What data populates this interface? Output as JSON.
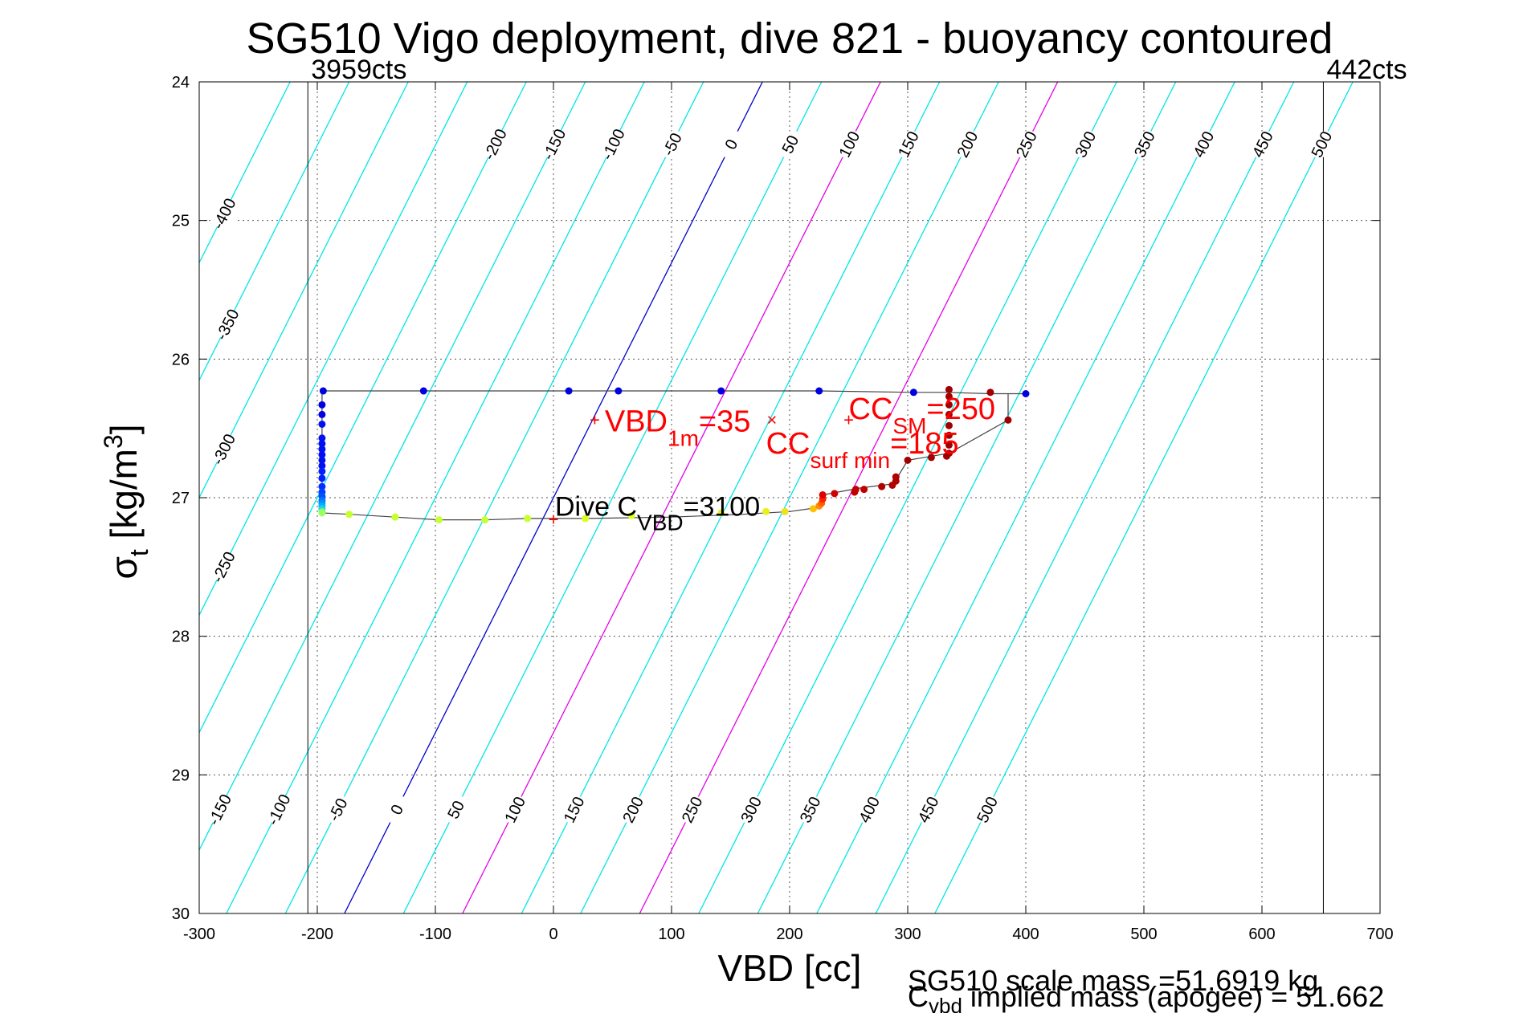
{
  "chart_data": {
    "type": "scatter",
    "title": "SG510 Vigo deployment, dive 821 - buoyancy contoured",
    "xlabel": "VBD [cc]",
    "ylabel": {
      "main": "σ",
      "sub": "t",
      "bracket_open": " [kg/m",
      "sup": "3",
      "bracket_close": "]"
    },
    "xlim": [
      -300,
      700
    ],
    "ylim": [
      24,
      30
    ],
    "y_reversed": true,
    "grid": "dotted",
    "xticks": [
      -300,
      -200,
      -100,
      0,
      100,
      200,
      300,
      400,
      500,
      600,
      700
    ],
    "yticks": [
      24,
      25,
      26,
      27,
      28,
      29,
      30
    ],
    "limits": [
      {
        "x": -208,
        "label": "3959cts"
      },
      {
        "x": 652,
        "label": "442cts"
      }
    ],
    "contours": {
      "slope_vbd_per_sigma": -59,
      "levels": [
        -400,
        -350,
        -300,
        -250,
        -200,
        -150,
        -100,
        -50,
        0,
        50,
        100,
        150,
        200,
        250,
        300,
        350,
        400,
        450,
        500
      ],
      "colors": {
        "default": "#00e5e5",
        "zero": "#0000cc",
        "highlight": "#e600e6"
      },
      "highlight_levels": [
        100,
        250
      ],
      "top_labels": [
        {
          "level": -200,
          "text": "-200"
        },
        {
          "level": -150,
          "text": "-150"
        },
        {
          "level": -100,
          "text": "-100"
        },
        {
          "level": -50,
          "text": "-50"
        },
        {
          "level": 0,
          "text": "0"
        },
        {
          "level": 50,
          "text": "50"
        },
        {
          "level": 100,
          "text": "100"
        },
        {
          "level": 150,
          "text": "150"
        },
        {
          "level": 200,
          "text": "200"
        },
        {
          "level": 250,
          "text": "250"
        },
        {
          "level": 300,
          "text": "300"
        },
        {
          "level": 350,
          "text": "350"
        },
        {
          "level": 400,
          "text": "400"
        },
        {
          "level": 450,
          "text": "450"
        },
        {
          "level": 500,
          "text": "500"
        }
      ],
      "left_labels": [
        {
          "level": -400,
          "text": "-400"
        },
        {
          "level": -350,
          "text": "-350"
        },
        {
          "level": -300,
          "text": "-300"
        },
        {
          "level": -250,
          "text": "-250"
        }
      ],
      "bottom_labels": [
        {
          "level": -150,
          "text": "-150"
        },
        {
          "level": -100,
          "text": "-100"
        },
        {
          "level": -50,
          "text": "-50"
        },
        {
          "level": 0,
          "text": "0"
        },
        {
          "level": 50,
          "text": "50"
        },
        {
          "level": 100,
          "text": "100"
        },
        {
          "level": 150,
          "text": "150"
        },
        {
          "level": 200,
          "text": "200"
        },
        {
          "level": 250,
          "text": "250"
        },
        {
          "level": 300,
          "text": "300"
        },
        {
          "level": 350,
          "text": "350"
        },
        {
          "level": 400,
          "text": "400"
        },
        {
          "level": 450,
          "text": "450"
        },
        {
          "level": 500,
          "text": "500"
        }
      ]
    },
    "dive_trace": {
      "x": [
        -195,
        -110,
        13,
        55,
        142,
        225,
        305,
        333,
        370,
        400,
        385,
        385,
        335,
        300,
        288,
        260,
        228,
        225,
        200,
        160,
        100,
        27,
        0,
        -22,
        -58,
        -97,
        -134,
        -173,
        -196,
        -196,
        -196,
        -196,
        -196,
        -196,
        -196,
        -196,
        -196,
        -196,
        -196,
        -196,
        -196,
        -196,
        -195
      ],
      "y": [
        26.23,
        26.23,
        26.23,
        26.23,
        26.23,
        26.23,
        26.24,
        26.24,
        26.25,
        26.25,
        26.25,
        26.44,
        26.68,
        26.73,
        26.9,
        26.93,
        26.98,
        27.07,
        27.1,
        27.12,
        27.14,
        27.15,
        27.15,
        27.15,
        27.16,
        27.16,
        27.14,
        27.12,
        27.11,
        27.05,
        27.0,
        26.95,
        26.85,
        26.78,
        26.7,
        26.62,
        26.55,
        26.45,
        26.38,
        26.31,
        26.27,
        26.25,
        26.23
      ]
    },
    "points": [
      {
        "x": -195,
        "y": 26.23,
        "color": "#0000e0"
      },
      {
        "x": -110,
        "y": 26.23,
        "color": "#0000e0"
      },
      {
        "x": 13,
        "y": 26.23,
        "color": "#0000e0"
      },
      {
        "x": 55,
        "y": 26.23,
        "color": "#0000e0"
      },
      {
        "x": 142,
        "y": 26.23,
        "color": "#0000e0"
      },
      {
        "x": 225,
        "y": 26.23,
        "color": "#0000e0"
      },
      {
        "x": 305,
        "y": 26.24,
        "color": "#0000e0"
      },
      {
        "x": 400,
        "y": 26.25,
        "color": "#0000e0"
      },
      {
        "x": -196,
        "y": 26.33,
        "color": "#0000e0"
      },
      {
        "x": -196,
        "y": 26.4,
        "color": "#0000e0"
      },
      {
        "x": -196,
        "y": 26.47,
        "color": "#0010f0"
      },
      {
        "x": -196,
        "y": 26.57,
        "color": "#0010f0"
      },
      {
        "x": -196,
        "y": 26.61,
        "color": "#0010f0"
      },
      {
        "x": -196,
        "y": 26.65,
        "color": "#0010f0"
      },
      {
        "x": -196,
        "y": 26.69,
        "color": "#0010f0"
      },
      {
        "x": -196,
        "y": 26.73,
        "color": "#0010f0"
      },
      {
        "x": -196,
        "y": 26.77,
        "color": "#0010f0"
      },
      {
        "x": -196,
        "y": 26.81,
        "color": "#0020ff"
      },
      {
        "x": -196,
        "y": 26.86,
        "color": "#0020ff"
      },
      {
        "x": -196,
        "y": 26.92,
        "color": "#0030ff"
      },
      {
        "x": -196,
        "y": 26.96,
        "color": "#0040ff"
      },
      {
        "x": -196,
        "y": 26.99,
        "color": "#0050ff"
      },
      {
        "x": -196,
        "y": 27.02,
        "color": "#0070ff"
      },
      {
        "x": -196,
        "y": 27.04,
        "color": "#0090ff"
      },
      {
        "x": -196,
        "y": 27.06,
        "color": "#00b0ff"
      },
      {
        "x": -196,
        "y": 27.08,
        "color": "#20d0e0"
      },
      {
        "x": -196,
        "y": 27.1,
        "color": "#60f0a0"
      },
      {
        "x": -196,
        "y": 27.11,
        "color": "#a0ff60"
      },
      {
        "x": -173,
        "y": 27.12,
        "color": "#c8ff30"
      },
      {
        "x": -134,
        "y": 27.14,
        "color": "#c8ff30"
      },
      {
        "x": -97,
        "y": 27.16,
        "color": "#c8ff30"
      },
      {
        "x": -58,
        "y": 27.16,
        "color": "#c8ff30"
      },
      {
        "x": -22,
        "y": 27.15,
        "color": "#c8ff30"
      },
      {
        "x": 27,
        "y": 27.15,
        "color": "#d8ff20"
      },
      {
        "x": 66,
        "y": 27.13,
        "color": "#e0ff20"
      },
      {
        "x": 142,
        "y": 27.11,
        "color": "#e8f020"
      },
      {
        "x": 180,
        "y": 27.1,
        "color": "#e8f020"
      },
      {
        "x": 196,
        "y": 27.1,
        "color": "#f0e020"
      },
      {
        "x": 220,
        "y": 27.08,
        "color": "#ffc000"
      },
      {
        "x": 225,
        "y": 27.06,
        "color": "#ff9000"
      },
      {
        "x": 227,
        "y": 27.04,
        "color": "#ff6000"
      },
      {
        "x": 228,
        "y": 27.01,
        "color": "#ff2000"
      },
      {
        "x": 228,
        "y": 26.98,
        "color": "#e00000"
      },
      {
        "x": 238,
        "y": 26.97,
        "color": "#d00000"
      },
      {
        "x": 255,
        "y": 26.96,
        "color": "#c00000"
      },
      {
        "x": 256,
        "y": 26.94,
        "color": "#c00000"
      },
      {
        "x": 263,
        "y": 26.94,
        "color": "#c00000"
      },
      {
        "x": 278,
        "y": 26.92,
        "color": "#b00000"
      },
      {
        "x": 287,
        "y": 26.91,
        "color": "#b00000"
      },
      {
        "x": 290,
        "y": 26.88,
        "color": "#b00000"
      },
      {
        "x": 290,
        "y": 26.85,
        "color": "#b00000"
      },
      {
        "x": 300,
        "y": 26.73,
        "color": "#a00000"
      },
      {
        "x": 320,
        "y": 26.71,
        "color": "#a00000"
      },
      {
        "x": 333,
        "y": 26.7,
        "color": "#a00000"
      },
      {
        "x": 335,
        "y": 26.68,
        "color": "#a00000"
      },
      {
        "x": 335,
        "y": 26.62,
        "color": "#a00000"
      },
      {
        "x": 335,
        "y": 26.55,
        "color": "#a00000"
      },
      {
        "x": 335,
        "y": 26.48,
        "color": "#a00000"
      },
      {
        "x": 335,
        "y": 26.4,
        "color": "#a00000"
      },
      {
        "x": 335,
        "y": 26.33,
        "color": "#a00000"
      },
      {
        "x": 335,
        "y": 26.27,
        "color": "#a00000"
      },
      {
        "x": 335,
        "y": 26.22,
        "color": "#a00000"
      },
      {
        "x": 370,
        "y": 26.24,
        "color": "#a00000"
      },
      {
        "x": 385,
        "y": 26.44,
        "color": "#a00000"
      }
    ],
    "annotations": [
      {
        "kind": "vbd1m",
        "marker": "+",
        "mx": 35,
        "my": 26.44,
        "main": "VBD",
        "sub": "1m",
        "tail": "=35",
        "tx": 38,
        "ty": 26.44
      },
      {
        "kind": "ccsurf",
        "marker": "×",
        "mx": 185,
        "my": 26.44,
        "main": "CC",
        "sub": "surf min",
        "tail": "=185",
        "tx": 180,
        "ty": 26.6
      },
      {
        "kind": "ccsm",
        "marker": "+",
        "mx": 250,
        "my": 26.44,
        "main": "CC",
        "sub": "SM",
        "tail": "=250",
        "tx": 250,
        "ty": 26.35
      },
      {
        "kind": "divecvbd",
        "marker": "+",
        "mx": 0,
        "my": 27.16,
        "main": "Dive C",
        "sub": "VBD",
        "tail": "=3100",
        "tx": 0,
        "ty": 27.05
      }
    ],
    "annotation_colors": {
      "red": "#ff0000",
      "black": "#000000"
    }
  },
  "footer": {
    "scale_mass": "SG510 scale mass =51.6919 kg",
    "implied_main": "C",
    "implied_sub": "vbd",
    "implied_tail": " implied mass (apogee) = 51.662"
  }
}
